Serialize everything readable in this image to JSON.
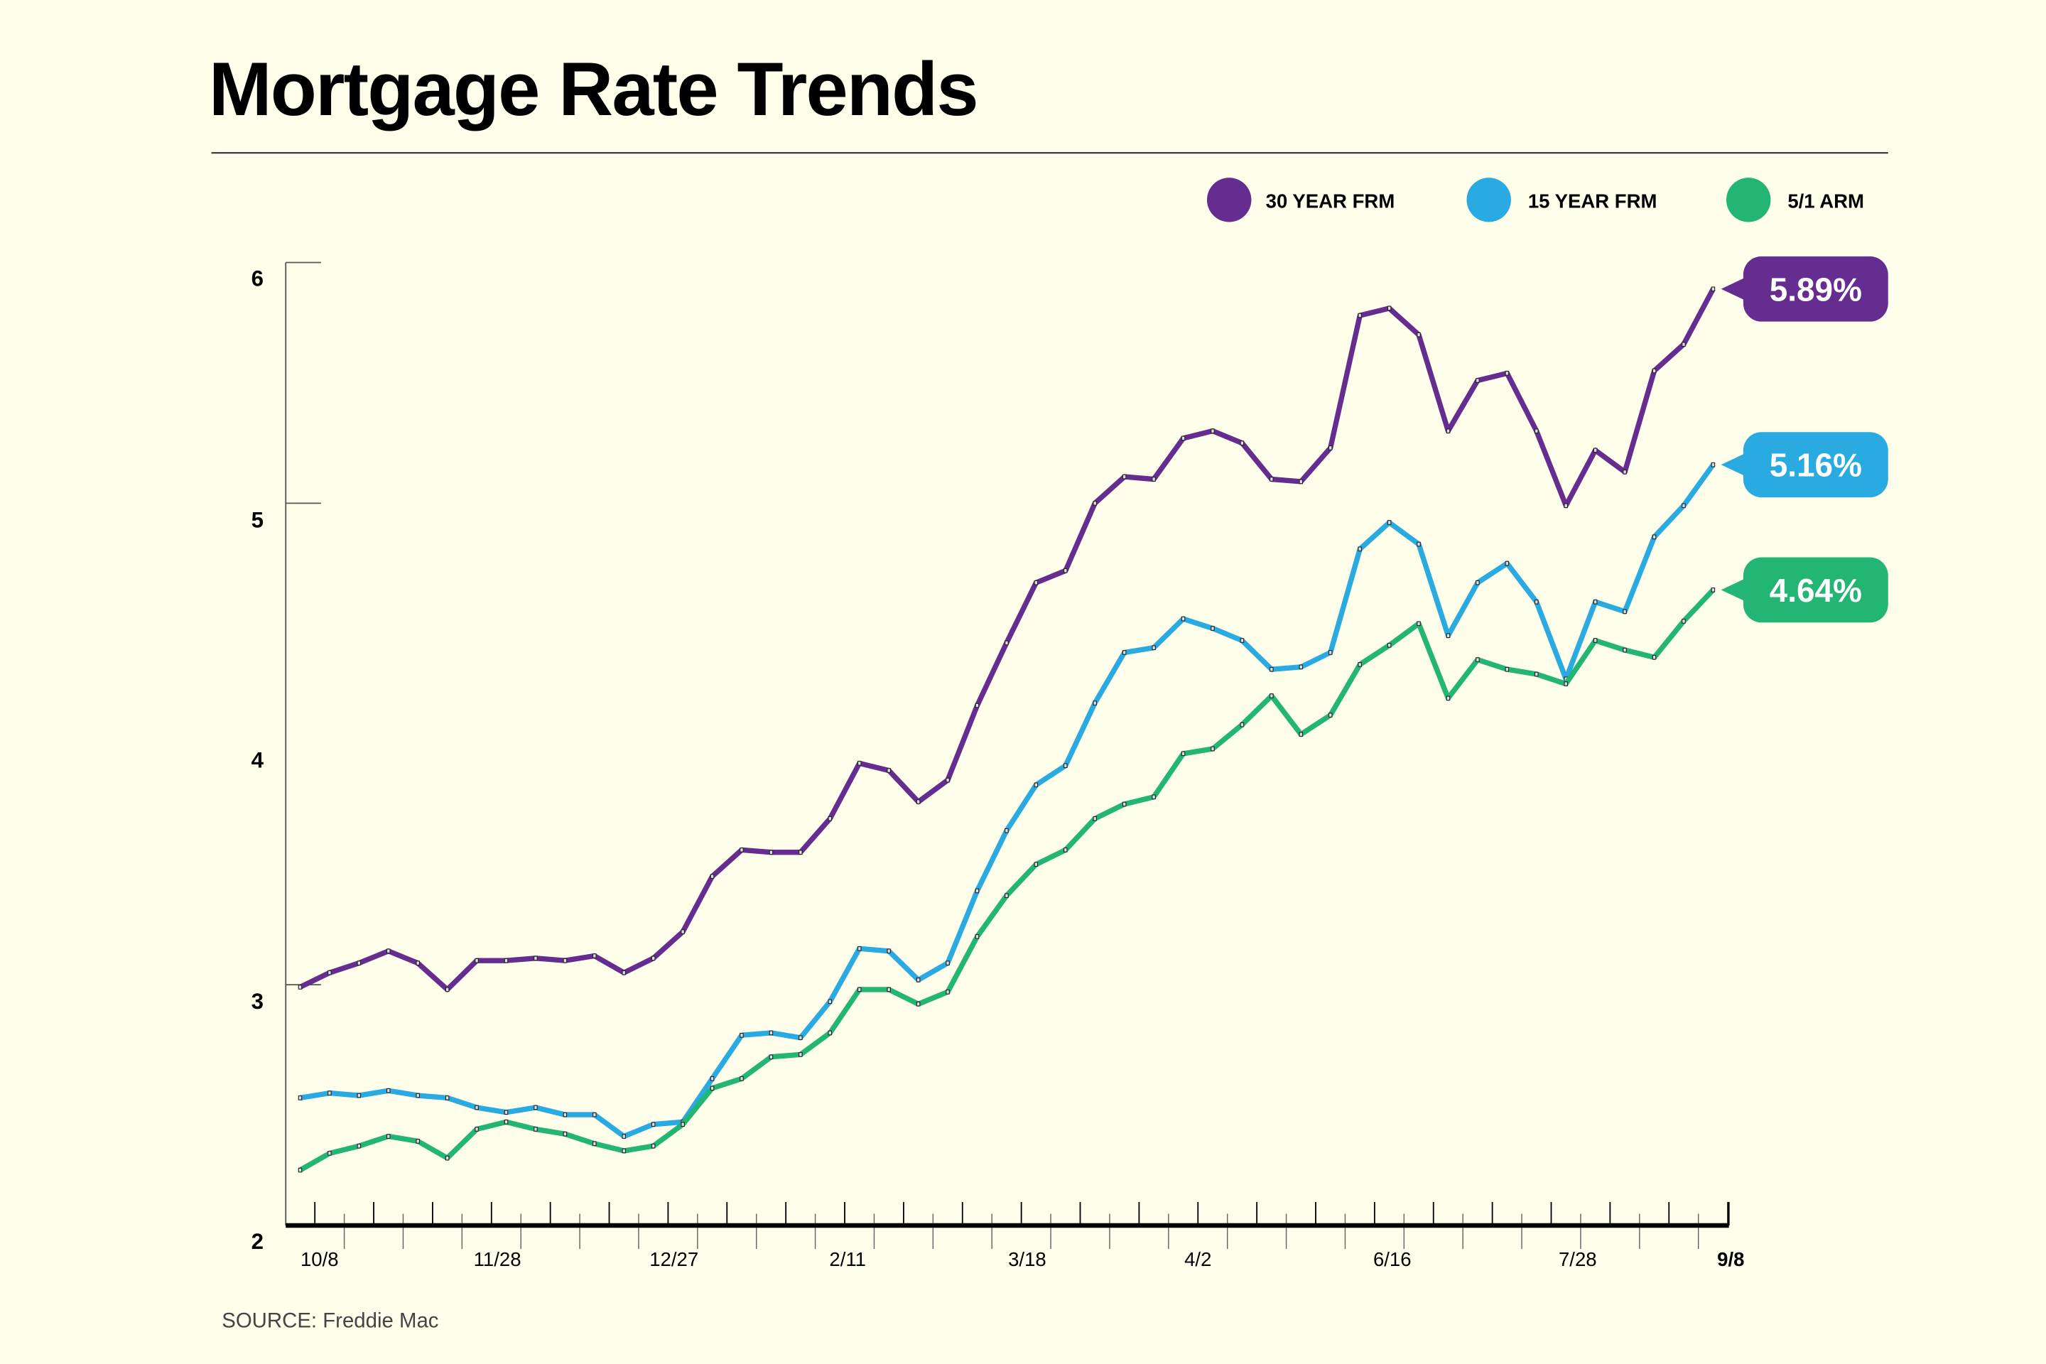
{
  "title": "Mortgage Rate Trends",
  "source": "SOURCE: Freddie Mac",
  "colors": {
    "background": "#fefeeb",
    "30yr": "#662d91",
    "15yr": "#29abe2",
    "arm": "#22b573"
  },
  "chart_data": {
    "type": "line",
    "title": "Mortgage Rate Trends",
    "ylim": [
      2,
      6
    ],
    "yticks": [
      "2",
      "3",
      "4",
      "5",
      "6"
    ],
    "x_tick_labels": [
      "10/8",
      "11/28",
      "12/27",
      "2/11",
      "3/18",
      "4/2",
      "6/16",
      "7/28",
      "9/8"
    ],
    "grid": false,
    "legend": "top-right",
    "series": [
      {
        "name": "30 YEAR FRM",
        "color": "#662d91",
        "end_label": "5.89%",
        "values": [
          2.99,
          3.05,
          3.09,
          3.14,
          3.09,
          2.98,
          3.1,
          3.1,
          3.11,
          3.1,
          3.12,
          3.05,
          3.11,
          3.22,
          3.45,
          3.56,
          3.55,
          3.55,
          3.69,
          3.92,
          3.89,
          3.76,
          3.85,
          4.16,
          4.42,
          4.67,
          4.72,
          5.0,
          5.11,
          5.1,
          5.27,
          5.3,
          5.25,
          5.1,
          5.09,
          5.23,
          5.78,
          5.81,
          5.7,
          5.3,
          5.51,
          5.54,
          5.3,
          4.99,
          5.22,
          5.13,
          5.55,
          5.66,
          5.89
        ]
      },
      {
        "name": "15 YEAR FRM",
        "color": "#29abe2",
        "end_label": "5.16%",
        "values": [
          2.53,
          2.55,
          2.54,
          2.56,
          2.54,
          2.53,
          2.49,
          2.47,
          2.49,
          2.46,
          2.46,
          2.37,
          2.42,
          2.43,
          2.61,
          2.79,
          2.8,
          2.78,
          2.93,
          3.15,
          3.14,
          3.02,
          3.09,
          3.39,
          3.64,
          3.83,
          3.91,
          4.17,
          4.38,
          4.4,
          4.52,
          4.48,
          4.43,
          4.31,
          4.32,
          4.38,
          4.81,
          4.92,
          4.83,
          4.45,
          4.67,
          4.75,
          4.59,
          4.27,
          4.59,
          4.55,
          4.86,
          4.99,
          5.16
        ]
      },
      {
        "name": "5/1 ARM",
        "color": "#22b573",
        "end_label": "4.64%",
        "values": [
          2.23,
          2.3,
          2.33,
          2.37,
          2.35,
          2.28,
          2.4,
          2.43,
          2.4,
          2.38,
          2.34,
          2.31,
          2.33,
          2.42,
          2.57,
          2.61,
          2.7,
          2.71,
          2.8,
          2.98,
          2.98,
          2.92,
          2.97,
          3.2,
          3.37,
          3.5,
          3.56,
          3.69,
          3.75,
          3.78,
          3.96,
          3.98,
          4.08,
          4.2,
          4.04,
          4.12,
          4.33,
          4.41,
          4.5,
          4.19,
          4.35,
          4.31,
          4.29,
          4.25,
          4.43,
          4.39,
          4.36,
          4.51,
          4.64
        ]
      }
    ]
  }
}
